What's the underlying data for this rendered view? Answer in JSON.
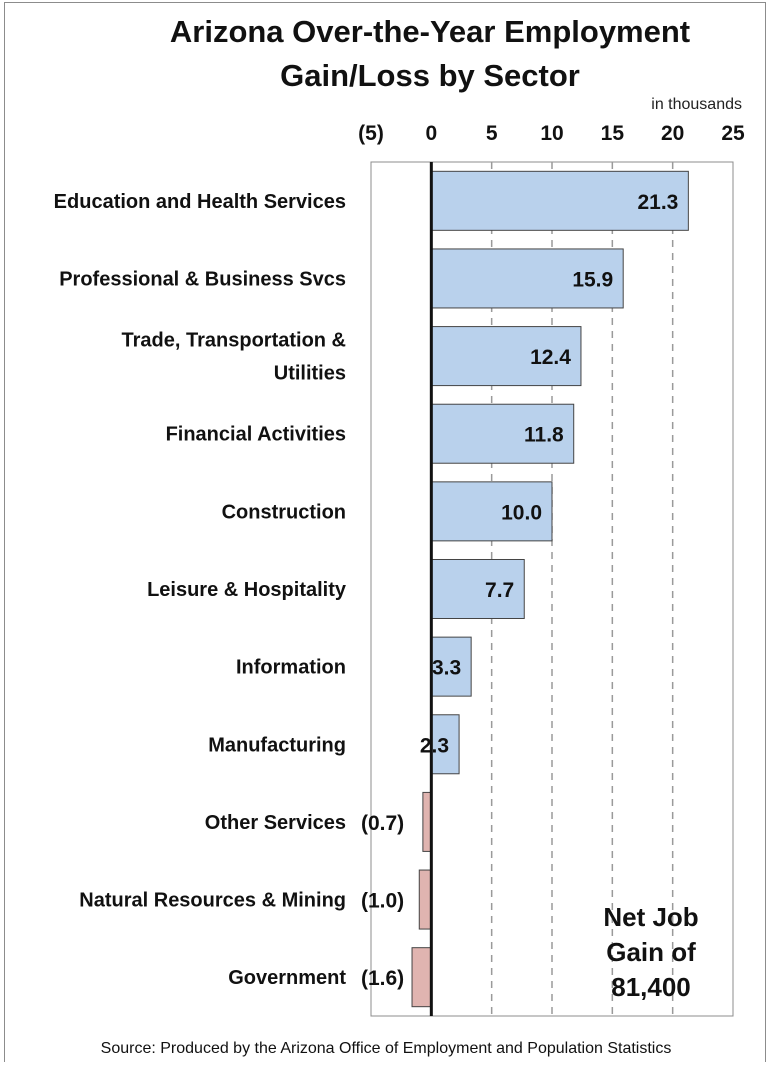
{
  "chart_data": {
    "type": "bar",
    "orientation": "horizontal",
    "title": "Arizona Over-the-Year Employment Gain/Loss by Sector",
    "title_lines": [
      "Arizona Over-the-Year Employment",
      "Gain/Loss by Sector"
    ],
    "unit_label": "in thousands",
    "xlim": [
      -5,
      25
    ],
    "x_ticks": [
      -5,
      0,
      5,
      10,
      15,
      20,
      25
    ],
    "x_tick_labels": [
      "(5)",
      "0",
      "5",
      "10",
      "15",
      "20",
      "25"
    ],
    "grid": "vertical dashed",
    "categories": [
      [
        "Education and Health Services"
      ],
      [
        "Professional & Business Svcs"
      ],
      [
        "Trade, Transportation &",
        "Utilities"
      ],
      [
        "Financial Activities"
      ],
      [
        "Construction"
      ],
      [
        "Leisure & Hospitality"
      ],
      [
        "Information"
      ],
      [
        "Manufacturing"
      ],
      [
        "Other Services"
      ],
      [
        "Natural Resources & Mining"
      ],
      [
        "Government"
      ]
    ],
    "values": [
      21.3,
      15.9,
      12.4,
      11.8,
      10.0,
      7.7,
      3.3,
      2.3,
      -0.7,
      -1.0,
      -1.6
    ],
    "value_labels": [
      "21.3",
      "15.9",
      "12.4",
      "11.8",
      "10.0",
      "7.7",
      "3.3",
      "2.3",
      "(0.7)",
      "(1.0)",
      "(1.6)"
    ],
    "colors": {
      "positive": "#b9d1ec",
      "negative": "#e0b4b0",
      "border": "#444444",
      "grid": "#9a9a9a"
    },
    "annotation": [
      "Net Job",
      "Gain of",
      "81,400"
    ]
  },
  "source": "Source: Produced by the Arizona Office of Employment and Population Statistics"
}
